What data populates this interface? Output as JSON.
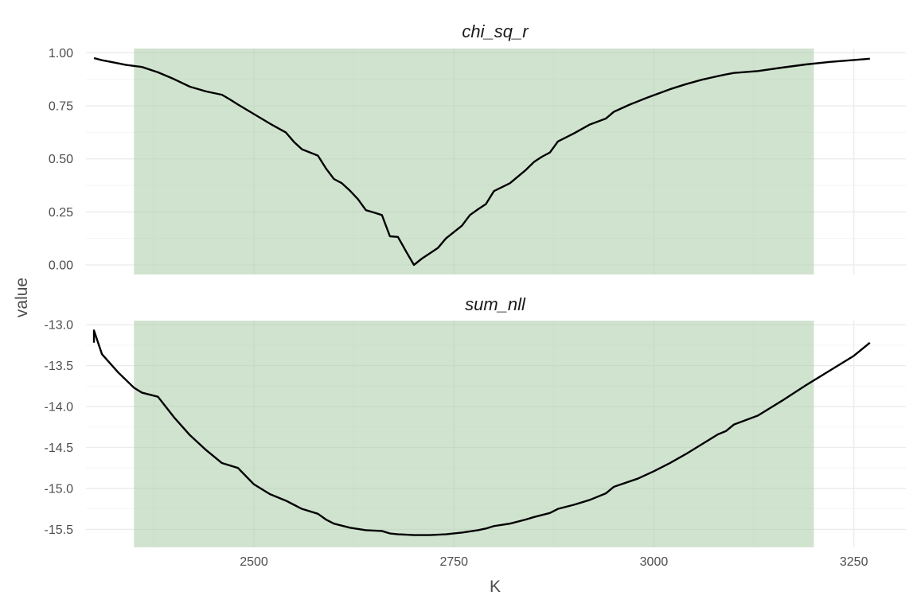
{
  "chart_data": {
    "type": "line",
    "xlabel": "K",
    "ylabel": "value",
    "x_ticks": [
      2500,
      2750,
      3000,
      3250
    ],
    "x_range": [
      2290,
      3315
    ],
    "highlight_band": {
      "x_start": 2350,
      "x_end": 3200,
      "color": "#a9cca8"
    },
    "grid": true,
    "facets": [
      {
        "title": "chi_sq_r",
        "y_range": [
          -0.045,
          1.02
        ],
        "y_ticks": [
          0.0,
          0.25,
          0.5,
          0.75,
          1.0
        ],
        "y_tick_labels": [
          "0.00",
          "0.25",
          "0.50",
          "0.75",
          "1.00"
        ],
        "series": [
          {
            "x": [
              2300,
              2310,
              2320,
              2340,
              2360,
              2380,
              2400,
              2420,
              2440,
              2460,
              2470,
              2480,
              2500,
              2520,
              2540,
              2550,
              2560,
              2570,
              2580,
              2590,
              2600,
              2610,
              2620,
              2630,
              2640,
              2650,
              2660,
              2670,
              2680,
              2690,
              2700,
              2710,
              2720,
              2730,
              2740,
              2750,
              2760,
              2770,
              2780,
              2790,
              2800,
              2820,
              2840,
              2850,
              2860,
              2870,
              2880,
              2900,
              2920,
              2940,
              2950,
              2970,
              2990,
              3000,
              3020,
              3040,
              3060,
              3080,
              3090,
              3100,
              3130,
              3160,
              3190,
              3220,
              3250,
              3270
            ],
            "y": [
              0.975,
              0.965,
              0.958,
              0.943,
              0.933,
              0.908,
              0.876,
              0.84,
              0.818,
              0.802,
              0.78,
              0.756,
              0.711,
              0.666,
              0.624,
              0.58,
              0.545,
              0.53,
              0.515,
              0.455,
              0.405,
              0.385,
              0.35,
              0.31,
              0.258,
              0.247,
              0.235,
              0.135,
              0.132,
              0.065,
              0.0,
              0.03,
              0.055,
              0.08,
              0.125,
              0.155,
              0.185,
              0.235,
              0.262,
              0.287,
              0.348,
              0.385,
              0.448,
              0.485,
              0.51,
              0.53,
              0.582,
              0.62,
              0.662,
              0.69,
              0.722,
              0.756,
              0.786,
              0.8,
              0.828,
              0.852,
              0.873,
              0.89,
              0.898,
              0.905,
              0.914,
              0.93,
              0.945,
              0.957,
              0.966,
              0.972
            ]
          }
        ]
      },
      {
        "title": "sum_nll",
        "y_range": [
          -15.72,
          -12.95
        ],
        "y_ticks": [
          -13.0,
          -13.5,
          -14.0,
          -14.5,
          -15.0,
          -15.5
        ],
        "y_tick_labels": [
          "-13.0",
          "-13.5",
          "-14.0",
          "-14.5",
          "-15.0",
          "-15.5"
        ],
        "series": [
          {
            "x": [
              2300,
              2300,
              2310,
              2330,
              2350,
              2360,
              2380,
              2400,
              2420,
              2440,
              2460,
              2480,
              2490,
              2500,
              2520,
              2540,
              2550,
              2560,
              2580,
              2590,
              2600,
              2620,
              2640,
              2660,
              2670,
              2680,
              2700,
              2720,
              2740,
              2760,
              2780,
              2790,
              2800,
              2820,
              2840,
              2850,
              2870,
              2880,
              2900,
              2920,
              2940,
              2950,
              2980,
              3000,
              3020,
              3040,
              3060,
              3080,
              3090,
              3100,
              3130,
              3160,
              3190,
              3220,
              3250,
              3270
            ],
            "y": [
              -13.22,
              -13.07,
              -13.36,
              -13.58,
              -13.77,
              -13.83,
              -13.88,
              -14.13,
              -14.35,
              -14.53,
              -14.69,
              -14.75,
              -14.85,
              -14.95,
              -15.07,
              -15.15,
              -15.2,
              -15.25,
              -15.31,
              -15.38,
              -15.43,
              -15.48,
              -15.51,
              -15.52,
              -15.55,
              -15.56,
              -15.57,
              -15.57,
              -15.56,
              -15.54,
              -15.51,
              -15.49,
              -15.46,
              -15.43,
              -15.38,
              -15.35,
              -15.3,
              -15.25,
              -15.2,
              -15.14,
              -15.06,
              -14.98,
              -14.88,
              -14.79,
              -14.69,
              -14.58,
              -14.46,
              -14.34,
              -14.3,
              -14.22,
              -14.11,
              -13.93,
              -13.74,
              -13.56,
              -13.38,
              -13.22
            ]
          }
        ]
      }
    ]
  }
}
